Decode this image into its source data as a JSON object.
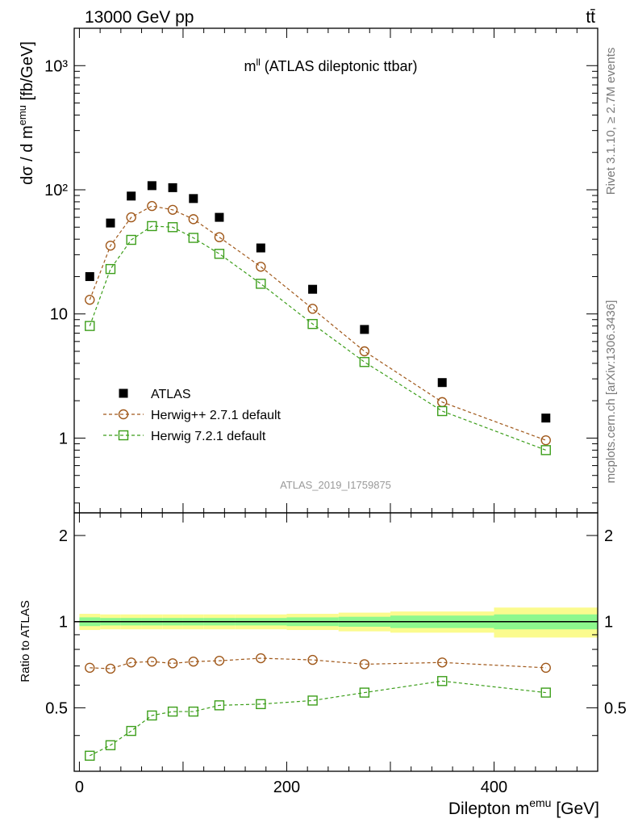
{
  "header": {
    "left": "13000 GeV pp",
    "right": "tt̄"
  },
  "side_labels": {
    "rivet": "Rivet 3.1.10, ≥ 2.7M events",
    "mcplots": "mcplots.cern.ch [arXiv:1306.3436]"
  },
  "main_panel": {
    "title_base": "m",
    "title_sup": "ll",
    "title_rest": " (ATLAS dileptonic ttbar)",
    "ylabel_base": "dσ / d m",
    "ylabel_sup": "emu",
    "ylabel_units": " [fb/GeV]",
    "analysis_id": "ATLAS_2019_I1759875",
    "y_tick_labels": [
      "1",
      "10",
      "10²",
      "10³"
    ]
  },
  "ratio_panel": {
    "ylabel": "Ratio to ATLAS",
    "y_tick_labels": [
      "0.5",
      "1",
      "2"
    ]
  },
  "x_axis": {
    "label_base": "Dilepton m",
    "label_sup": "emu",
    "label_units": " [GeV]",
    "tick_labels": [
      "0",
      "200",
      "400"
    ]
  },
  "colors": {
    "data": "#000000",
    "herwigpp": "#a0581a",
    "herwig7": "#3c9e1a",
    "band_inner": "#8ef88e",
    "band_outer": "#fbfb8e"
  },
  "chart_data": {
    "type": "scatter",
    "xlim": [
      -5,
      500
    ],
    "ylim": [
      0.25,
      2000
    ],
    "yscale": "log",
    "ratio_ylim": [
      0.3,
      2.4
    ],
    "ratio_yscale": "log",
    "legend_position": "bottom-left",
    "x_edges": [
      0,
      20,
      40,
      60,
      80,
      100,
      120,
      150,
      200,
      250,
      300,
      400,
      500
    ],
    "x": [
      10,
      30,
      50,
      70,
      90,
      110,
      135,
      175,
      225,
      275,
      350,
      450
    ],
    "series": [
      {
        "name": "ATLAS",
        "marker": "filled-square",
        "values": [
          20.0,
          54.0,
          89.0,
          108.0,
          104.0,
          85.0,
          60.0,
          34.0,
          15.8,
          7.5,
          2.8,
          1.45
        ]
      },
      {
        "name": "Herwig++ 2.7.1 default",
        "marker": "open-circle",
        "values": [
          13.0,
          35.5,
          60.0,
          74.0,
          69.0,
          58.0,
          41.5,
          24.0,
          11.0,
          5.0,
          1.95,
          0.96
        ]
      },
      {
        "name": "Herwig 7.2.1 default",
        "marker": "open-square",
        "values": [
          8.0,
          23.0,
          39.5,
          51.0,
          50.0,
          41.0,
          30.5,
          17.5,
          8.3,
          4.1,
          1.65,
          0.8
        ]
      }
    ],
    "ratio": {
      "band_inner_halfwidth": [
        0.035,
        0.03,
        0.03,
        0.03,
        0.03,
        0.03,
        0.03,
        0.03,
        0.035,
        0.04,
        0.05,
        0.06
      ],
      "band_outer_halfwidth": [
        0.065,
        0.06,
        0.06,
        0.06,
        0.06,
        0.06,
        0.06,
        0.06,
        0.065,
        0.075,
        0.085,
        0.12
      ],
      "series": [
        {
          "name": "Herwig++ 2.7.1 default",
          "values": [
            0.69,
            0.685,
            0.72,
            0.725,
            0.715,
            0.725,
            0.73,
            0.745,
            0.735,
            0.71,
            0.72,
            0.69
          ]
        },
        {
          "name": "Herwig 7.2.1 default",
          "values": [
            0.34,
            0.37,
            0.415,
            0.47,
            0.485,
            0.485,
            0.51,
            0.515,
            0.53,
            0.565,
            0.62,
            0.565
          ]
        }
      ]
    }
  }
}
